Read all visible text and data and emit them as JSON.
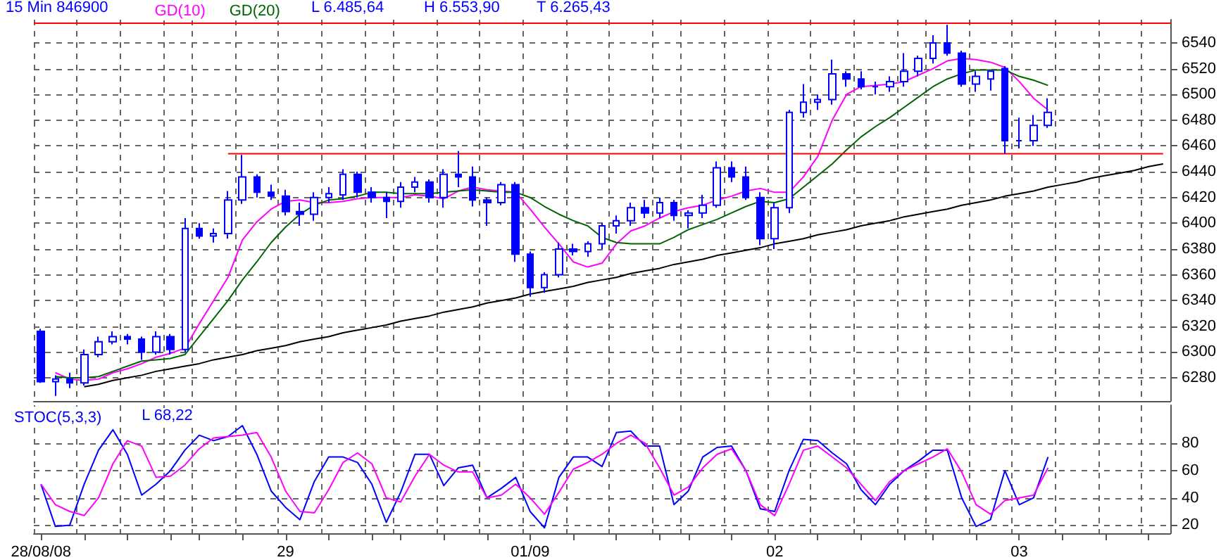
{
  "chart_data": [
    {
      "type": "candlestick",
      "title": "15 Min 846900",
      "annotations": [
        "L 6.485,64",
        "H 6.553,90",
        "T 6.265,43"
      ],
      "color": "#0000ff",
      "categories": [
        null,
        null,
        null,
        null,
        null,
        null,
        null,
        null,
        null,
        null,
        null,
        null,
        null,
        null,
        null,
        null,
        null,
        null,
        null,
        null,
        null,
        null,
        null,
        null,
        null,
        null,
        null,
        null,
        null,
        null,
        null,
        null,
        null,
        null,
        null,
        null,
        null,
        null,
        null,
        null,
        null,
        null,
        null,
        null,
        null,
        null,
        null,
        null,
        null,
        null,
        null,
        null,
        null,
        null,
        null,
        null,
        null,
        null,
        null,
        null,
        null,
        null,
        null,
        null,
        null,
        null,
        null,
        null,
        null,
        null,
        null,
        null,
        null,
        null,
        null,
        null,
        null,
        null,
        null
      ],
      "ohlc": [
        [
          6316,
          6318,
          6276,
          6277
        ],
        [
          6277,
          6282,
          6266,
          6279
        ],
        [
          6279,
          6284,
          6272,
          6276
        ],
        [
          6276,
          6302,
          6274,
          6298
        ],
        [
          6298,
          6312,
          6296,
          6308
        ],
        [
          6308,
          6316,
          6306,
          6312
        ],
        [
          6312,
          6314,
          6306,
          6310
        ],
        [
          6310,
          6312,
          6294,
          6300
        ],
        [
          6300,
          6316,
          6298,
          6312
        ],
        [
          6312,
          6314,
          6298,
          6302
        ],
        [
          6302,
          6404,
          6300,
          6396
        ],
        [
          6396,
          6400,
          6388,
          6390
        ],
        [
          6390,
          6396,
          6385,
          6392
        ],
        [
          6392,
          6425,
          6388,
          6418
        ],
        [
          6418,
          6453,
          6415,
          6436
        ],
        [
          6436,
          6438,
          6420,
          6424
        ],
        [
          6424,
          6430,
          6418,
          6421
        ],
        [
          6421,
          6426,
          6406,
          6409
        ],
        [
          6409,
          6416,
          6398,
          6407
        ],
        [
          6407,
          6424,
          6402,
          6420
        ],
        [
          6420,
          6428,
          6416,
          6423
        ],
        [
          6422,
          6442,
          6418,
          6438
        ],
        [
          6438,
          6440,
          6420,
          6424
        ],
        [
          6424,
          6428,
          6416,
          6420
        ],
        [
          6420,
          6424,
          6404,
          6417
        ],
        [
          6417,
          6432,
          6412,
          6428
        ],
        [
          6428,
          6436,
          6424,
          6432
        ],
        [
          6432,
          6434,
          6416,
          6420
        ],
        [
          6420,
          6442,
          6412,
          6438
        ],
        [
          6438,
          6456,
          6428,
          6436
        ],
        [
          6436,
          6444,
          6413,
          6418
        ],
        [
          6418,
          6420,
          6398,
          6416
        ],
        [
          6416,
          6432,
          6414,
          6430
        ],
        [
          6430,
          6432,
          6370,
          6376
        ],
        [
          6376,
          6378,
          6343,
          6350
        ],
        [
          6350,
          6362,
          6346,
          6360
        ],
        [
          6360,
          6385,
          6358,
          6380
        ],
        [
          6380,
          6384,
          6375,
          6378
        ],
        [
          6378,
          6386,
          6374,
          6384
        ],
        [
          6384,
          6400,
          6380,
          6398
        ],
        [
          6398,
          6406,
          6392,
          6402
        ],
        [
          6402,
          6416,
          6398,
          6412
        ],
        [
          6412,
          6418,
          6404,
          6408
        ],
        [
          6408,
          6420,
          6404,
          6416
        ],
        [
          6416,
          6418,
          6402,
          6406
        ],
        [
          6406,
          6410,
          6396,
          6408
        ],
        [
          6408,
          6422,
          6404,
          6414
        ],
        [
          6414,
          6448,
          6412,
          6443
        ],
        [
          6443,
          6448,
          6432,
          6436
        ],
        [
          6436,
          6444,
          6418,
          6420
        ],
        [
          6420,
          6424,
          6383,
          6388
        ],
        [
          6388,
          6416,
          6380,
          6412
        ],
        [
          6412,
          6488,
          6408,
          6486
        ],
        [
          6486,
          6508,
          6482,
          6494
        ],
        [
          6494,
          6500,
          6488,
          6496
        ],
        [
          6496,
          6527,
          6492,
          6516
        ],
        [
          6516,
          6518,
          6506,
          6512
        ],
        [
          6512,
          6518,
          6504,
          6506
        ],
        [
          6506,
          6510,
          6500,
          6506
        ],
        [
          6506,
          6514,
          6502,
          6510
        ],
        [
          6510,
          6532,
          6506,
          6518
        ],
        [
          6518,
          6530,
          6514,
          6528
        ],
        [
          6528,
          6546,
          6524,
          6540
        ],
        [
          6540,
          6554,
          6530,
          6532
        ],
        [
          6532,
          6534,
          6506,
          6508
        ],
        [
          6508,
          6518,
          6502,
          6514
        ],
        [
          6512,
          6518,
          6503,
          6518
        ],
        [
          6520,
          6522,
          6454,
          6464
        ],
        [
          6464,
          6482,
          6458,
          6464
        ],
        [
          6464,
          6484,
          6460,
          6476
        ],
        [
          6476,
          6497,
          6474,
          6486
        ],
        null,
        null,
        null,
        null,
        null,
        null,
        null,
        null
      ],
      "series": [
        {
          "type": "line",
          "name": "GD(10)",
          "color": "#ff00ff",
          "values": [
            null,
            6284,
            6279,
            6278,
            6279,
            6284,
            6287,
            6291,
            6296,
            6299,
            6303,
            6322,
            6340,
            6358,
            6387,
            6401,
            6411,
            6417,
            6418,
            6416,
            6416,
            6417,
            6419,
            6420,
            6420,
            6420,
            6422,
            6421,
            6419,
            6425,
            6428,
            6426,
            6425,
            6424,
            6411,
            6397,
            6384,
            6370,
            6366,
            6369,
            6384,
            6394,
            6398,
            6404,
            6409,
            6412,
            6414,
            6418,
            6421,
            6425,
            6427,
            6424,
            6424,
            6436,
            6452,
            6480,
            6500,
            6506,
            6507,
            6508,
            6510,
            6515,
            6520,
            6526,
            6528,
            6527,
            6525,
            6521,
            6510,
            6497,
            6488,
            null,
            null,
            null,
            null,
            null,
            null,
            null,
            null
          ]
        },
        {
          "type": "line",
          "name": "GD(20)",
          "color": "#006400",
          "values": [
            null,
            6281,
            6280,
            6280,
            6281,
            6285,
            6289,
            6293,
            6294,
            6295,
            6298,
            6312,
            6326,
            6340,
            6356,
            6370,
            6385,
            6397,
            6407,
            6414,
            6418,
            6419,
            6421,
            6424,
            6424,
            6423,
            6423,
            6423,
            6424,
            6425,
            6426,
            6425,
            6424,
            6424,
            6420,
            6413,
            6407,
            6402,
            6398,
            6389,
            6385,
            6384,
            6384,
            6384,
            6389,
            6395,
            6399,
            6403,
            6408,
            6413,
            6417,
            6416,
            6419,
            6428,
            6437,
            6446,
            6457,
            6467,
            6475,
            6482,
            6490,
            6498,
            6506,
            6512,
            6516,
            6519,
            6519,
            6519,
            6514,
            6511,
            6507,
            null,
            null,
            null,
            null,
            null,
            null,
            null,
            null
          ]
        },
        {
          "type": "line",
          "color": "#000000",
          "values": [
            null,
            null,
            null,
            6273,
            6275,
            6278,
            6280,
            6282,
            6285,
            6287,
            6289,
            6291,
            6294,
            6296,
            6298,
            6301,
            6303,
            6305,
            6308,
            6310,
            6312,
            6315,
            6317,
            6319,
            6321,
            6324,
            6326,
            6328,
            6331,
            6333,
            6335,
            6338,
            6340,
            6342,
            6345,
            6347,
            6349,
            6351,
            6354,
            6356,
            6358,
            6361,
            6363,
            6365,
            6368,
            6370,
            6372,
            6375,
            6377,
            6379,
            6381,
            6384,
            6386,
            6388,
            6391,
            6393,
            6395,
            6398,
            6400,
            6402,
            6405,
            6407,
            6409,
            6411,
            6414,
            6416,
            6418,
            6421,
            6423,
            6425,
            6428,
            6430,
            6432,
            6435,
            6437,
            6439,
            6441,
            6444,
            6446
          ]
        },
        {
          "type": "line",
          "color": "#ff0000",
          "values": [
            null,
            null,
            null,
            null,
            null,
            null,
            null,
            null,
            null,
            null,
            null,
            null,
            null,
            6454,
            6454,
            6454,
            6454,
            6454,
            6454,
            6454,
            6454,
            6454,
            6454,
            6454,
            6454,
            6454,
            6454,
            6454,
            6454,
            6454,
            6454,
            6454,
            6454,
            6454,
            6454,
            6454,
            6454,
            6454,
            6454,
            6454,
            6454,
            6454,
            6454,
            6454,
            6454,
            6454,
            6454,
            6454,
            6454,
            6454,
            6454,
            6454,
            6454,
            6454,
            6454,
            6454,
            6454,
            6454,
            6454,
            6454,
            6454,
            6454,
            6454,
            6454,
            6454,
            6454,
            6454,
            6454,
            6454,
            6454,
            6454,
            6454,
            6454,
            6454,
            6454,
            6454,
            6454,
            6454,
            6454
          ]
        }
      ],
      "ref_lines": [
        {
          "axis": "y",
          "value": 6556,
          "color": "#ff0000"
        }
      ],
      "legend": "top left",
      "grid": true,
      "tick_labels": "y",
      "ylim": [
        6262,
        6558
      ],
      "yticks": [
        6280,
        6300,
        6320,
        6340,
        6360,
        6380,
        6400,
        6420,
        6440,
        6460,
        6480,
        6500,
        6520,
        6540
      ]
    },
    {
      "type": "line",
      "annotations": [
        "L 68,22"
      ],
      "categories": [
        "28/08/08",
        null,
        null,
        null,
        null,
        null,
        null,
        null,
        null,
        null,
        null,
        null,
        null,
        null,
        null,
        null,
        null,
        "29",
        null,
        null,
        null,
        null,
        null,
        null,
        null,
        null,
        null,
        null,
        null,
        null,
        null,
        null,
        null,
        null,
        "01/09",
        null,
        null,
        null,
        null,
        null,
        null,
        null,
        null,
        null,
        null,
        null,
        null,
        null,
        null,
        null,
        null,
        "02",
        null,
        null,
        null,
        null,
        null,
        null,
        null,
        null,
        null,
        null,
        null,
        null,
        null,
        null,
        null,
        null,
        "03",
        null,
        null,
        null,
        null,
        null,
        null,
        null,
        null,
        null,
        null
      ],
      "series": [
        {
          "name": "STOC(5,3,3)",
          "color": "#0000ff",
          "values": [
            50,
            19,
            20,
            50,
            75,
            90,
            72,
            42,
            50,
            60,
            75,
            86,
            82,
            85,
            93,
            72,
            45,
            33,
            24,
            52,
            70,
            70,
            66,
            50,
            22,
            44,
            72,
            72,
            49,
            62,
            64,
            40,
            47,
            55,
            30,
            18,
            55,
            70,
            70,
            63,
            88,
            89,
            78,
            78,
            35,
            45,
            70,
            77,
            78,
            60,
            32,
            30,
            60,
            83,
            82,
            73,
            65,
            46,
            35,
            50,
            60,
            67,
            75,
            75,
            40,
            19,
            24,
            60,
            35,
            40,
            70,
            null,
            null,
            null,
            null,
            null,
            null,
            null,
            null
          ]
        },
        {
          "color": "#ff00ff",
          "values": [
            50,
            35,
            30,
            27,
            40,
            65,
            82,
            78,
            55,
            56,
            64,
            76,
            84,
            85,
            86,
            88,
            70,
            45,
            30,
            29,
            46,
            66,
            73,
            65,
            40,
            37,
            56,
            72,
            64,
            59,
            59,
            40,
            42,
            50,
            40,
            28,
            44,
            61,
            66,
            72,
            80,
            86,
            80,
            62,
            42,
            48,
            62,
            72,
            76,
            60,
            35,
            27,
            50,
            75,
            78,
            70,
            62,
            50,
            38,
            52,
            60,
            65,
            70,
            76,
            59,
            35,
            28,
            38,
            40,
            42,
            62,
            null,
            null,
            null,
            null,
            null,
            null,
            null,
            null
          ]
        }
      ],
      "legend": "top left",
      "grid": true,
      "ylim": [
        14,
        108
      ],
      "yticks": [
        20,
        40,
        60,
        80
      ]
    }
  ]
}
